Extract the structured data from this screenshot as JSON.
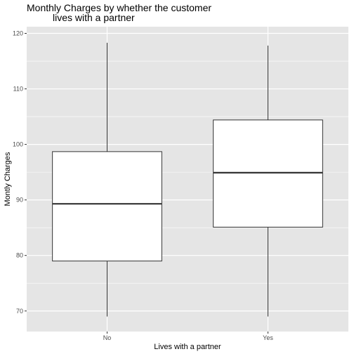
{
  "chart_data": {
    "type": "boxplot",
    "title_lines": [
      "Monthly Charges by whether the customer",
      "lives with a partner"
    ],
    "xlabel": "Lives with a partner",
    "ylabel": "Montly Charges",
    "categories": [
      "No",
      "Yes"
    ],
    "boxes": [
      {
        "category": "No",
        "min": 69.0,
        "q1": 79.0,
        "median": 89.3,
        "q3": 98.7,
        "max": 118.3
      },
      {
        "category": "Yes",
        "min": 69.0,
        "q1": 85.1,
        "median": 94.9,
        "q3": 104.4,
        "max": 117.8
      }
    ],
    "y_ticks": [
      70,
      80,
      90,
      100,
      110,
      120
    ],
    "ylim": [
      66.3,
      121.2
    ],
    "grid": true,
    "colors": {
      "panel_background": "#e5e5e5",
      "grid": "#ffffff",
      "box_fill": "#ffffff",
      "box_stroke": "#333333",
      "tick": "#333333"
    }
  }
}
